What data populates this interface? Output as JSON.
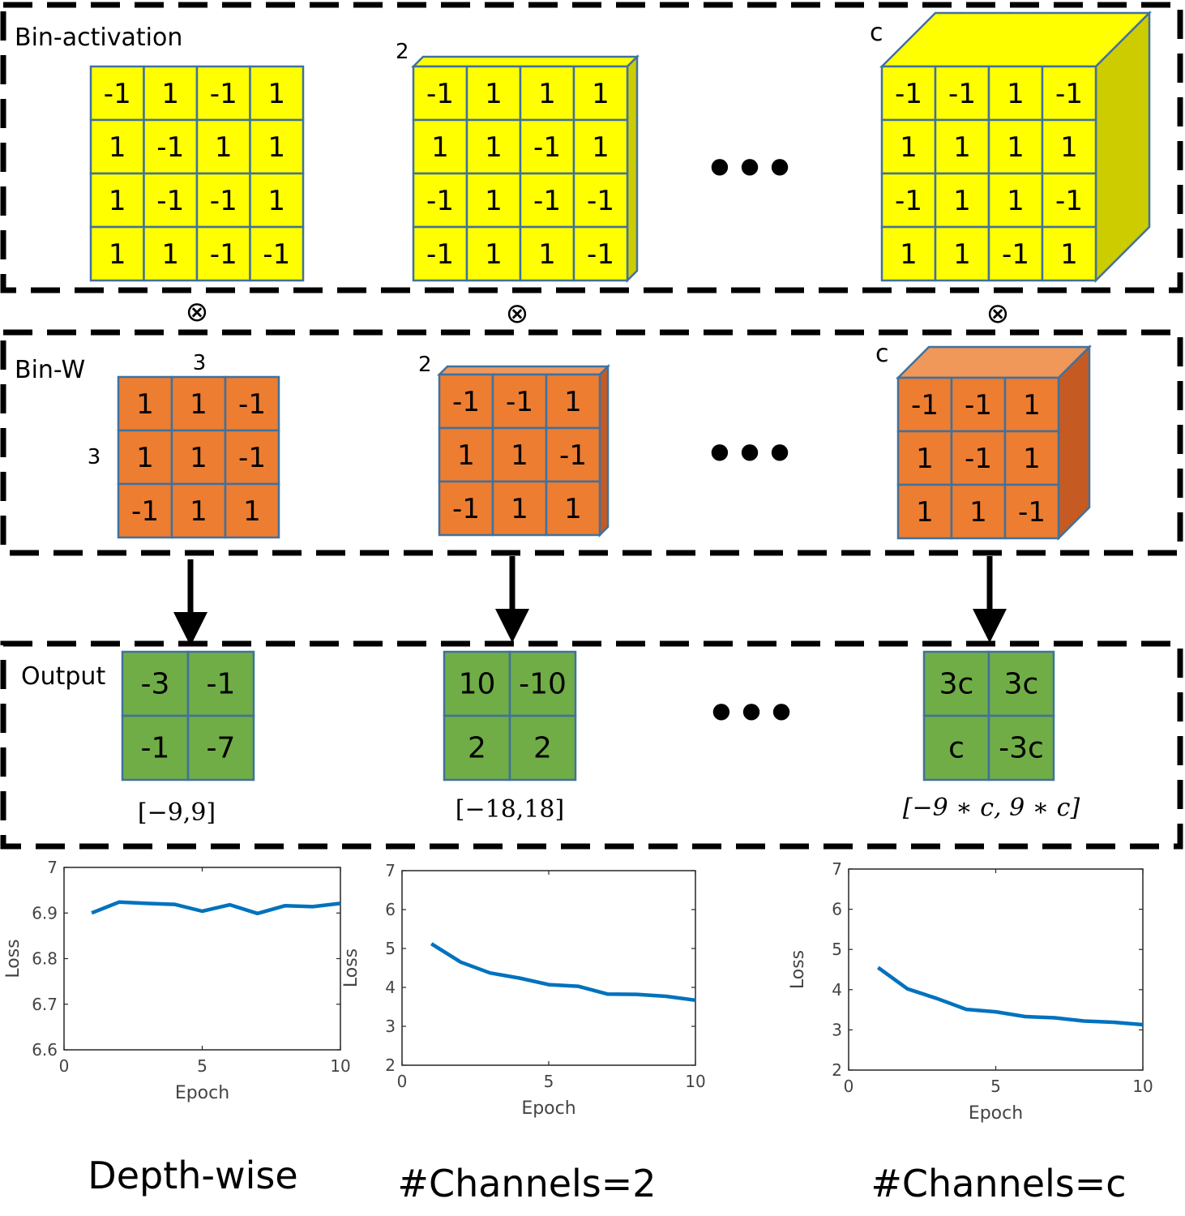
{
  "sections": {
    "bin_activation_label": "Bin-activation",
    "bin_w_label": "Bin-W",
    "output_label": "Output"
  },
  "ellipsis": "•••",
  "otimes": "⊗",
  "colors": {
    "activation_face": "#ffff00",
    "activation_side": "#cccc00",
    "weight_face": "#ed7d31",
    "weight_top": "#f0975a",
    "weight_side": "#c55a23",
    "output_face": "#70ad47",
    "grid_stroke": "#41719c",
    "line": "#0072bd"
  },
  "columns": [
    {
      "depth_label": "",
      "activation": [
        [
          "-1",
          "1",
          "-1",
          "1"
        ],
        [
          "1",
          "-1",
          "1",
          "1"
        ],
        [
          "1",
          "-1",
          "-1",
          "1"
        ],
        [
          "1",
          "1",
          "-1",
          "-1"
        ]
      ],
      "weight_width_label": "3",
      "weight_height_label": "3",
      "weight_depth_label": "",
      "weight": [
        [
          "1",
          "1",
          "-1"
        ],
        [
          "1",
          "1",
          "-1"
        ],
        [
          "-1",
          "1",
          "1"
        ]
      ],
      "output": [
        [
          "-3",
          "-1"
        ],
        [
          "-1",
          "-7"
        ]
      ],
      "range": "[−9,9]",
      "caption": "Depth-wise"
    },
    {
      "depth_label": "2",
      "activation": [
        [
          "-1",
          "1",
          "1",
          "1"
        ],
        [
          "1",
          "1",
          "-1",
          "1"
        ],
        [
          "-1",
          "1",
          "-1",
          "-1"
        ],
        [
          "-1",
          "1",
          "1",
          "-1"
        ]
      ],
      "weight_width_label": "",
      "weight_height_label": "",
      "weight_depth_label": "2",
      "weight": [
        [
          "-1",
          "-1",
          "1"
        ],
        [
          "1",
          "1",
          "-1"
        ],
        [
          "-1",
          "1",
          "1"
        ]
      ],
      "output": [
        [
          "10",
          "-10"
        ],
        [
          "2",
          "2"
        ]
      ],
      "range": "[−18,18]",
      "caption": "#Channels=2"
    },
    {
      "depth_label": "c",
      "activation": [
        [
          "-1",
          "-1",
          "1",
          "-1"
        ],
        [
          "1",
          "1",
          "1",
          "1"
        ],
        [
          "-1",
          "1",
          "1",
          "-1"
        ],
        [
          "1",
          "1",
          "-1",
          "1"
        ]
      ],
      "weight_width_label": "",
      "weight_height_label": "",
      "weight_depth_label": "c",
      "weight": [
        [
          "-1",
          "-1",
          "1"
        ],
        [
          "1",
          "-1",
          "1"
        ],
        [
          "1",
          "1",
          "-1"
        ]
      ],
      "output": [
        [
          "3c",
          "3c"
        ],
        [
          "c",
          "-3c"
        ]
      ],
      "range": "[−9 ∗ c, 9 ∗ c]",
      "caption": "#Channels=c"
    }
  ],
  "chart_data": [
    {
      "type": "line",
      "xlabel": "Epoch",
      "ylabel": "Loss",
      "xlim": [
        0,
        10
      ],
      "ylim": [
        6.6,
        7
      ],
      "xticks": [
        "0",
        "5",
        "10"
      ],
      "yticks": [
        "6.6",
        "6.7",
        "6.8",
        "6.9",
        "7"
      ],
      "x": [
        1,
        2,
        3,
        4,
        5,
        6,
        7,
        8,
        9,
        10
      ],
      "y": [
        6.9,
        6.924,
        6.921,
        6.919,
        6.904,
        6.918,
        6.899,
        6.916,
        6.914,
        6.921
      ]
    },
    {
      "type": "line",
      "xlabel": "Epoch",
      "ylabel": "Loss",
      "xlim": [
        0,
        10
      ],
      "ylim": [
        2,
        7
      ],
      "xticks": [
        "0",
        "5",
        "10"
      ],
      "yticks": [
        "2",
        "3",
        "4",
        "5",
        "6",
        "7"
      ],
      "x": [
        1,
        2,
        3,
        4,
        5,
        6,
        7,
        8,
        9,
        10
      ],
      "y": [
        5.12,
        4.65,
        4.37,
        4.24,
        4.07,
        4.03,
        3.83,
        3.82,
        3.77,
        3.67
      ]
    },
    {
      "type": "line",
      "xlabel": "Epoch",
      "ylabel": "Loss",
      "xlim": [
        0,
        10
      ],
      "ylim": [
        2,
        7
      ],
      "xticks": [
        "0",
        "5",
        "10"
      ],
      "yticks": [
        "2",
        "3",
        "4",
        "5",
        "6",
        "7"
      ],
      "x": [
        1,
        2,
        3,
        4,
        5,
        6,
        7,
        8,
        9,
        10
      ],
      "y": [
        4.55,
        4.02,
        3.78,
        3.51,
        3.45,
        3.33,
        3.3,
        3.22,
        3.19,
        3.13
      ]
    }
  ]
}
